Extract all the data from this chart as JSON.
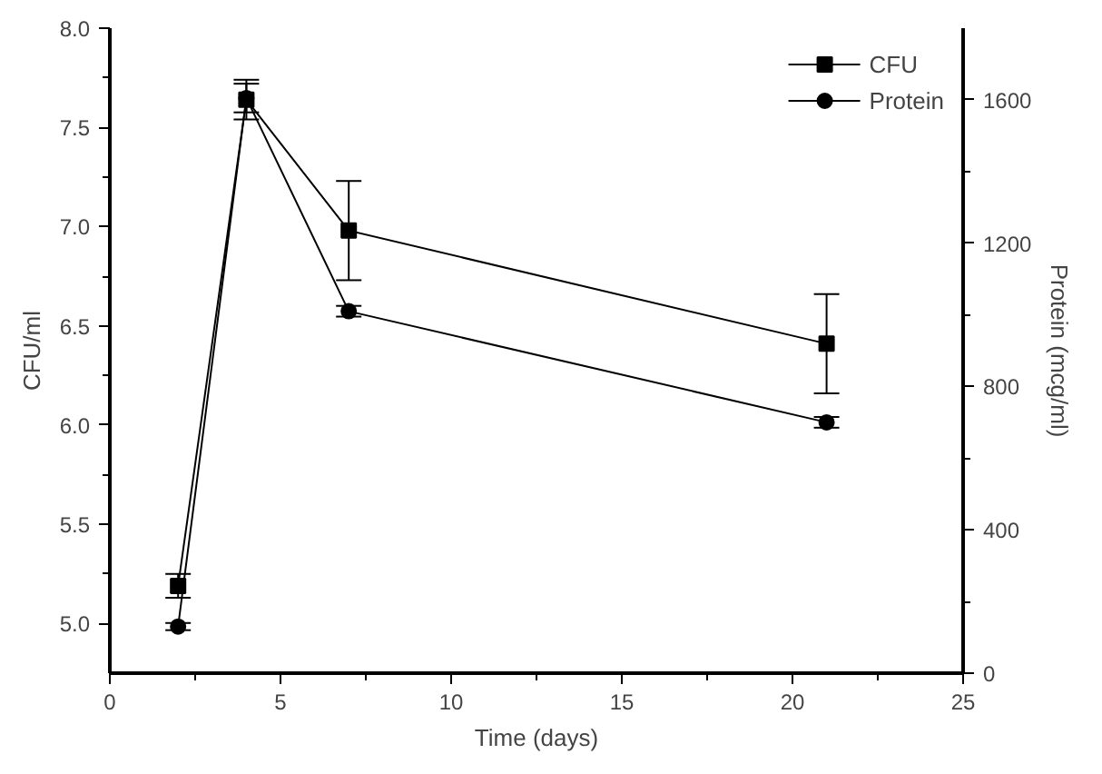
{
  "chart_data": {
    "type": "line",
    "xlabel": "Time (days)",
    "ylabel": "CFU/ml",
    "y2label": "Protein (mcg/ml)",
    "x": [
      2,
      4,
      7,
      21
    ],
    "series": [
      {
        "name": "CFU",
        "color": "#000000",
        "marker": "square",
        "values": [
          5.19,
          7.64,
          6.98,
          6.41
        ],
        "errors": [
          0.06,
          0.1,
          0.25,
          0.25
        ]
      },
      {
        "name": "Protein",
        "color": "#000000",
        "marker": "circle",
        "axis": "y2",
        "values": [
          130,
          1605,
          1010,
          700
        ],
        "errors": [
          10,
          40,
          15,
          15
        ]
      }
    ],
    "xlim": [
      0,
      25
    ],
    "xticks": [
      0,
      5,
      10,
      15,
      20,
      25
    ],
    "ylim": [
      4.75,
      8.0
    ],
    "yticks": [
      {
        "value": 5.0,
        "label": "5.0"
      },
      {
        "value": 5.5,
        "label": "5.5"
      },
      {
        "value": 6.0,
        "label": "6.0"
      },
      6.5,
      {
        "value": 7.0,
        "label": "7.0"
      },
      7.5,
      {
        "value": 8.0,
        "label": "8.0"
      }
    ],
    "y2lim": [
      0,
      1800
    ],
    "y2ticks": [
      0,
      400,
      800,
      1200,
      1600
    ],
    "grid": false,
    "legend": "top right",
    "line_style": "solid"
  }
}
